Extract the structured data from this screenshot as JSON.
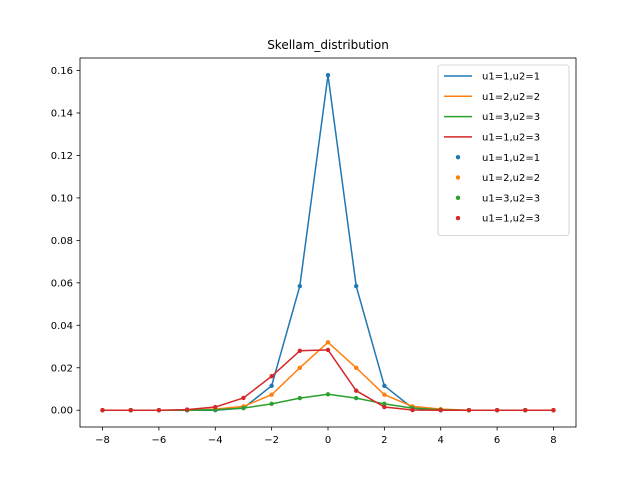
{
  "chart_data": {
    "type": "line",
    "title": "Skellam_distribution",
    "xlabel": "",
    "ylabel": "",
    "xlim": [
      -8.8,
      8.8
    ],
    "ylim": [
      -0.0079,
      0.1659
    ],
    "x_ticks": [
      -8,
      -6,
      -4,
      -2,
      0,
      2,
      4,
      6,
      8
    ],
    "x_tick_labels": [
      "−8",
      "−6",
      "−4",
      "−2",
      "0",
      "2",
      "4",
      "6",
      "8"
    ],
    "y_ticks": [
      0.0,
      0.02,
      0.04,
      0.06,
      0.08,
      0.1,
      0.12,
      0.14,
      0.16
    ],
    "y_tick_labels": [
      "0.00",
      "0.02",
      "0.04",
      "0.06",
      "0.08",
      "0.10",
      "0.12",
      "0.14",
      "0.16"
    ],
    "grid": false,
    "legend_placement": "top-right",
    "x": [
      -8,
      -7,
      -6,
      -5,
      -4,
      -3,
      -2,
      -1,
      0,
      1,
      2,
      3,
      4,
      5,
      6,
      7,
      8
    ],
    "series": [
      {
        "name": "u1=1,u2=1",
        "color": "#1f77b4",
        "values": [
          0.0,
          0.0,
          0.0,
          0.0,
          0.0,
          0.001,
          0.0115,
          0.0585,
          0.1578,
          0.0585,
          0.0115,
          0.001,
          0.0,
          0.0,
          0.0,
          0.0,
          0.0
        ]
      },
      {
        "name": "u1=2,u2=2",
        "color": "#ff7f0e",
        "values": [
          0.0,
          0.0,
          0.0,
          0.0,
          0.0005,
          0.0018,
          0.0073,
          0.02,
          0.032,
          0.02,
          0.0073,
          0.0018,
          0.0005,
          0.0,
          0.0,
          0.0,
          0.0
        ]
      },
      {
        "name": "u1=3,u2=3",
        "color": "#2ca02c",
        "values": [
          0.0,
          0.0,
          0.0,
          0.0,
          0.0002,
          0.001,
          0.003,
          0.0057,
          0.0075,
          0.0057,
          0.003,
          0.001,
          0.0002,
          0.0,
          0.0,
          0.0,
          0.0
        ]
      },
      {
        "name": "u1=1,u2=3",
        "color": "#d62728",
        "values": [
          0.0,
          0.0,
          0.0,
          0.0003,
          0.0015,
          0.0058,
          0.016,
          0.028,
          0.0284,
          0.0092,
          0.0015,
          0.0001,
          0.0,
          0.0,
          0.0,
          0.0,
          0.0
        ]
      }
    ],
    "legend_entries": [
      {
        "label": "u1=1,u2=1",
        "kind": "line",
        "color": "#1f77b4"
      },
      {
        "label": "u1=2,u2=2",
        "kind": "line",
        "color": "#ff7f0e"
      },
      {
        "label": "u1=3,u2=3",
        "kind": "line",
        "color": "#2ca02c"
      },
      {
        "label": "u1=1,u2=3",
        "kind": "line",
        "color": "#d62728"
      },
      {
        "label": "u1=1,u2=1",
        "kind": "marker",
        "color": "#1f77b4"
      },
      {
        "label": "u1=2,u2=2",
        "kind": "marker",
        "color": "#ff7f0e"
      },
      {
        "label": "u1=3,u2=3",
        "kind": "marker",
        "color": "#2ca02c"
      },
      {
        "label": "u1=1,u2=3",
        "kind": "marker",
        "color": "#d62728"
      }
    ]
  }
}
